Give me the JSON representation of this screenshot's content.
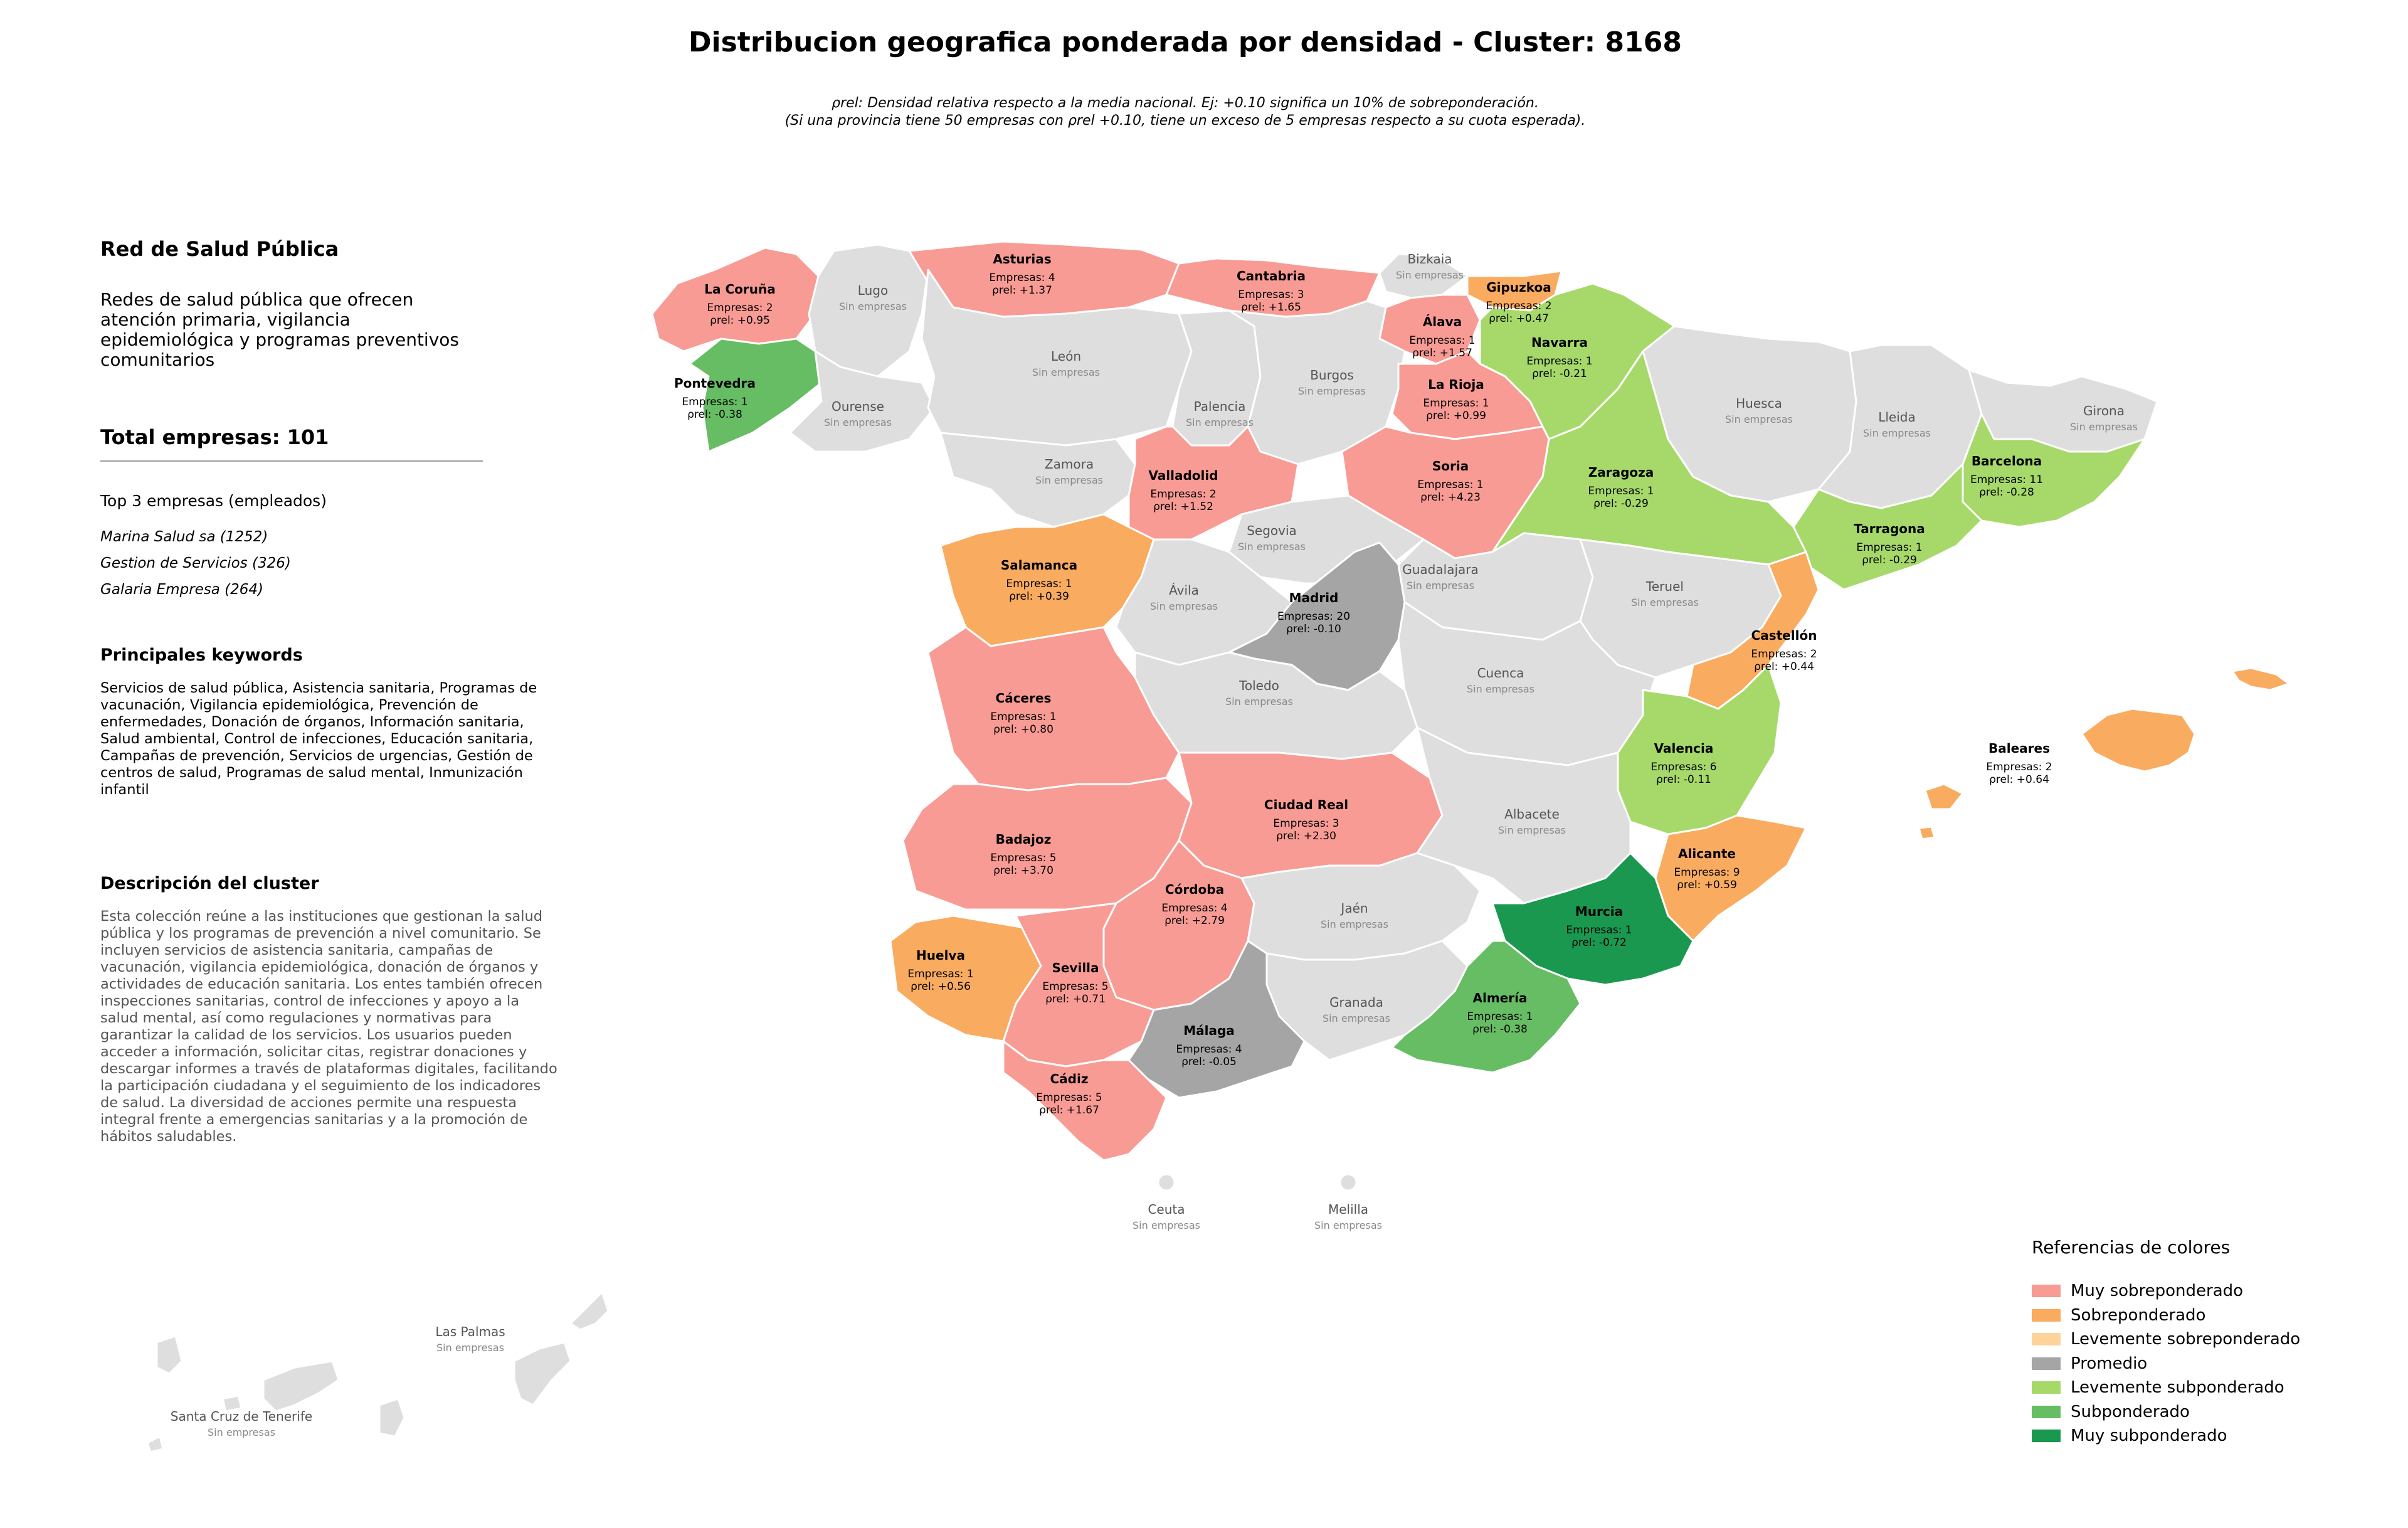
{
  "title": "Distribucion geografica ponderada por densidad - Cluster: 8168",
  "subtitle": {
    "line1": "ρrel: Densidad relativa respecto a la media nacional. Ej: +0.10 significa un 10% de sobreponderación.",
    "line2": "(Si una provincia tiene 50 empresas con ρrel +0.10, tiene un exceso de 5 empresas respecto a su cuota esperada)."
  },
  "panel": {
    "cluster_name": "Red de Salud Pública",
    "cluster_summary": "Redes de salud pública que ofrecen atención primaria, vigilancia epidemiológica y programas preventivos comunitarios",
    "total": "Total empresas: 101",
    "top_label": "Top 3 empresas (empleados)",
    "top_companies": [
      "Marina Salud sa (1252)",
      "Gestion de Servicios (326)",
      "Galaria Empresa (264)"
    ],
    "keywords_title": "Principales keywords",
    "keywords": "Servicios de salud pública, Asistencia sanitaria, Programas de vacunación, Vigilancia epidemiológica, Prevención de enfermedades, Donación de órganos, Información sanitaria, Salud ambiental, Control de infecciones, Educación sanitaria, Campañas de prevención, Servicios de urgencias, Gestión de centros de salud, Programas de salud mental, Inmunización infantil",
    "description_title": "Descripción del cluster",
    "description": "Esta colección reúne a las instituciones que gestionan la salud pública y los programas de prevención a nivel comunitario. Se incluyen servicios de asistencia sanitaria, campañas de vacunación, vigilancia epidemiológica, donación de órganos y actividades de educación sanitaria. Los entes también ofrecen inspecciones sanitarias, control de infecciones y apoyo a la salud mental, así como regulaciones y normativas para garantizar la calidad de los servicios. Los usuarios pueden acceder a información, solicitar citas, registrar donaciones y descargar informes a través de plataformas digitales, facilitando la participación ciudadana y el seguimiento de los indicadores de salud. La diversidad de acciones permite una respuesta integral frente a emergencias sanitarias y a la promoción de hábitos saludables."
  },
  "colors": {
    "muy_sobre": "#f89b94",
    "sobre": "#f9ab60",
    "lev_sobre": "#fed49a",
    "promedio": "#a5a5a5",
    "lev_sub": "#a6d96a",
    "sub": "#66bd63",
    "muy_sub": "#1a9850",
    "none": "#dedede"
  },
  "legend": {
    "title": "Referencias de colores",
    "items": [
      {
        "label": "Muy sobreponderado",
        "color": "#f89b94"
      },
      {
        "label": "Sobreponderado",
        "color": "#f9ab60"
      },
      {
        "label": "Levemente sobreponderado",
        "color": "#fed49a"
      },
      {
        "label": "Promedio",
        "color": "#a5a5a5"
      },
      {
        "label": "Levemente subponderado",
        "color": "#a6d96a"
      },
      {
        "label": "Subponderado",
        "color": "#66bd63"
      },
      {
        "label": "Muy subponderado",
        "color": "#1a9850"
      }
    ]
  },
  "provinces": [
    {
      "name": "La Coruña",
      "cat": "muy_sobre",
      "empresas": "Empresas: 2",
      "rho": "ρrel: +0.95"
    },
    {
      "name": "Lugo",
      "cat": "none",
      "status": "Sin empresas"
    },
    {
      "name": "Asturias",
      "cat": "muy_sobre",
      "empresas": "Empresas: 4",
      "rho": "ρrel: +1.37"
    },
    {
      "name": "Cantabria",
      "cat": "muy_sobre",
      "empresas": "Empresas: 3",
      "rho": "ρrel: +1.65"
    },
    {
      "name": "Bizkaia",
      "cat": "none",
      "status": "Sin empresas"
    },
    {
      "name": "Gipuzkoa",
      "cat": "sobre",
      "empresas": "Empresas: 2",
      "rho": "ρrel: +0.47"
    },
    {
      "name": "Álava",
      "cat": "muy_sobre",
      "empresas": "Empresas: 1",
      "rho": "ρrel: +1.57"
    },
    {
      "name": "Navarra",
      "cat": "lev_sub",
      "empresas": "Empresas: 1",
      "rho": "ρrel: -0.21"
    },
    {
      "name": "Pontevedra",
      "cat": "sub",
      "empresas": "Empresas: 1",
      "rho": "ρrel: -0.38"
    },
    {
      "name": "Ourense",
      "cat": "none",
      "status": "Sin empresas"
    },
    {
      "name": "León",
      "cat": "none",
      "status": "Sin empresas"
    },
    {
      "name": "Palencia",
      "cat": "none",
      "status": "Sin empresas"
    },
    {
      "name": "Burgos",
      "cat": "none",
      "status": "Sin empresas"
    },
    {
      "name": "La Rioja",
      "cat": "muy_sobre",
      "empresas": "Empresas: 1",
      "rho": "ρrel: +0.99"
    },
    {
      "name": "Huesca",
      "cat": "none",
      "status": "Sin empresas"
    },
    {
      "name": "Lleida",
      "cat": "none",
      "status": "Sin empresas"
    },
    {
      "name": "Girona",
      "cat": "none",
      "status": "Sin empresas"
    },
    {
      "name": "Zamora",
      "cat": "none",
      "status": "Sin empresas"
    },
    {
      "name": "Valladolid",
      "cat": "muy_sobre",
      "empresas": "Empresas: 2",
      "rho": "ρrel: +1.52"
    },
    {
      "name": "Soria",
      "cat": "muy_sobre",
      "empresas": "Empresas: 1",
      "rho": "ρrel: +4.23"
    },
    {
      "name": "Zaragoza",
      "cat": "lev_sub",
      "empresas": "Empresas: 1",
      "rho": "ρrel: -0.29"
    },
    {
      "name": "Barcelona",
      "cat": "lev_sub",
      "empresas": "Empresas: 11",
      "rho": "ρrel: -0.28"
    },
    {
      "name": "Tarragona",
      "cat": "lev_sub",
      "empresas": "Empresas: 1",
      "rho": "ρrel: -0.29"
    },
    {
      "name": "Salamanca",
      "cat": "sobre",
      "empresas": "Empresas: 1",
      "rho": "ρrel: +0.39"
    },
    {
      "name": "Segovia",
      "cat": "none",
      "status": "Sin empresas"
    },
    {
      "name": "Ávila",
      "cat": "none",
      "status": "Sin empresas"
    },
    {
      "name": "Madrid",
      "cat": "promedio",
      "empresas": "Empresas: 20",
      "rho": "ρrel: -0.10"
    },
    {
      "name": "Guadalajara",
      "cat": "none",
      "status": "Sin empresas"
    },
    {
      "name": "Teruel",
      "cat": "none",
      "status": "Sin empresas"
    },
    {
      "name": "Castellón",
      "cat": "sobre",
      "empresas": "Empresas: 2",
      "rho": "ρrel: +0.44"
    },
    {
      "name": "Cáceres",
      "cat": "muy_sobre",
      "empresas": "Empresas: 1",
      "rho": "ρrel: +0.80"
    },
    {
      "name": "Toledo",
      "cat": "none",
      "status": "Sin empresas"
    },
    {
      "name": "Cuenca",
      "cat": "none",
      "status": "Sin empresas"
    },
    {
      "name": "Valencia",
      "cat": "lev_sub",
      "empresas": "Empresas: 6",
      "rho": "ρrel: -0.11"
    },
    {
      "name": "Badajoz",
      "cat": "muy_sobre",
      "empresas": "Empresas: 5",
      "rho": "ρrel: +3.70"
    },
    {
      "name": "Ciudad Real",
      "cat": "muy_sobre",
      "empresas": "Empresas: 3",
      "rho": "ρrel: +2.30"
    },
    {
      "name": "Albacete",
      "cat": "none",
      "status": "Sin empresas"
    },
    {
      "name": "Alicante",
      "cat": "sobre",
      "empresas": "Empresas: 9",
      "rho": "ρrel: +0.59"
    },
    {
      "name": "Córdoba",
      "cat": "muy_sobre",
      "empresas": "Empresas: 4",
      "rho": "ρrel: +2.79"
    },
    {
      "name": "Jaén",
      "cat": "none",
      "status": "Sin empresas"
    },
    {
      "name": "Murcia",
      "cat": "muy_sub",
      "empresas": "Empresas: 1",
      "rho": "ρrel: -0.72"
    },
    {
      "name": "Huelva",
      "cat": "sobre",
      "empresas": "Empresas: 1",
      "rho": "ρrel: +0.56"
    },
    {
      "name": "Sevilla",
      "cat": "muy_sobre",
      "empresas": "Empresas: 5",
      "rho": "ρrel: +0.71"
    },
    {
      "name": "Granada",
      "cat": "none",
      "status": "Sin empresas"
    },
    {
      "name": "Almería",
      "cat": "sub",
      "empresas": "Empresas: 1",
      "rho": "ρrel: -0.38"
    },
    {
      "name": "Málaga",
      "cat": "promedio",
      "empresas": "Empresas: 4",
      "rho": "ρrel: -0.05"
    },
    {
      "name": "Cádiz",
      "cat": "muy_sobre",
      "empresas": "Empresas: 5",
      "rho": "ρrel: +1.67"
    },
    {
      "name": "Baleares",
      "cat": "sobre",
      "empresas": "Empresas: 2",
      "rho": "ρrel: +0.64"
    },
    {
      "name": "Ceuta",
      "cat": "none",
      "status": "Sin empresas"
    },
    {
      "name": "Melilla",
      "cat": "none",
      "status": "Sin empresas"
    },
    {
      "name": "Las Palmas",
      "cat": "none",
      "status": "Sin empresas"
    },
    {
      "name": "Santa Cruz de Tenerife",
      "cat": "none",
      "status": "Sin empresas"
    }
  ]
}
